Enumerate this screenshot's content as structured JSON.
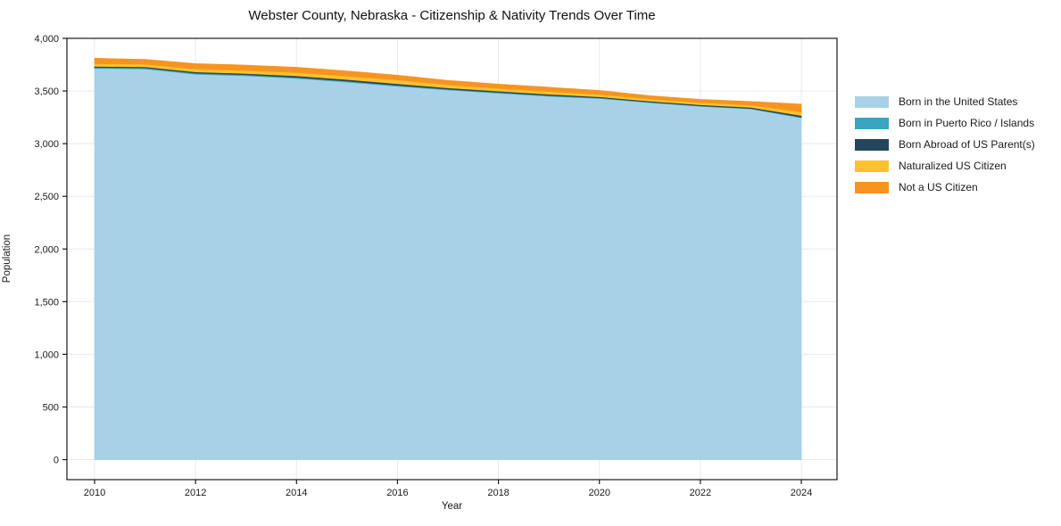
{
  "chart_data": {
    "type": "area",
    "stacked": true,
    "title": "Webster County, Nebraska - Citizenship & Nativity Trends Over Time",
    "xlabel": "Year",
    "ylabel": "Population",
    "x": [
      2010,
      2011,
      2012,
      2013,
      2014,
      2015,
      2016,
      2017,
      2018,
      2019,
      2020,
      2021,
      2022,
      2023,
      2024
    ],
    "series": [
      {
        "name": "Born in the United States",
        "color": "#a8d1e7",
        "values": [
          3715,
          3710,
          3660,
          3645,
          3620,
          3585,
          3545,
          3510,
          3480,
          3450,
          3430,
          3390,
          3355,
          3330,
          3245
        ]
      },
      {
        "name": "Born in Puerto Rico / Islands",
        "color": "#3aa5c2",
        "values": [
          10,
          10,
          10,
          10,
          10,
          10,
          10,
          8,
          8,
          8,
          6,
          5,
          5,
          5,
          8
        ]
      },
      {
        "name": "Born Abroad of US Parent(s)",
        "color": "#24465a",
        "values": [
          10,
          10,
          12,
          12,
          15,
          15,
          15,
          12,
          12,
          12,
          10,
          10,
          10,
          10,
          15
        ]
      },
      {
        "name": "Naturalized US Citizen",
        "color": "#fcc22d",
        "values": [
          25,
          25,
          28,
          28,
          30,
          32,
          35,
          30,
          25,
          25,
          22,
          20,
          20,
          22,
          32
        ]
      },
      {
        "name": "Not a US Citizen",
        "color": "#f79420",
        "values": [
          50,
          45,
          50,
          50,
          50,
          48,
          45,
          40,
          40,
          40,
          37,
          30,
          30,
          33,
          75
        ]
      }
    ],
    "stack_totals": [
      3810,
      3800,
      3760,
      3745,
      3725,
      3690,
      3650,
      3600,
      3565,
      3535,
      3505,
      3455,
      3420,
      3400,
      3375
    ],
    "xlim": [
      2009.452,
      2024.707
    ],
    "ylim": [
      -190,
      4000
    ],
    "xticks": [
      2010,
      2012,
      2014,
      2016,
      2018,
      2020,
      2022,
      2024
    ],
    "yticks": [
      0,
      500,
      1000,
      1500,
      2000,
      2500,
      3000,
      3500,
      4000
    ],
    "ytick_labels": [
      "0",
      "500",
      "1,000",
      "1,500",
      "2,000",
      "2,500",
      "3,000",
      "3,500",
      "4,000"
    ],
    "grid": true,
    "grid_color": "#e9e9e9",
    "spine_color": "#1a1a1a",
    "legend_position": "right"
  }
}
